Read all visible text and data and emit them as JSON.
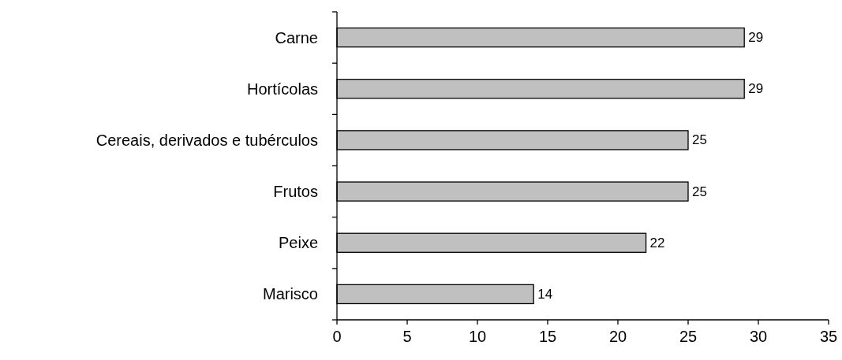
{
  "chart_data": {
    "type": "bar",
    "orientation": "horizontal",
    "categories": [
      "Carne",
      "Hortícolas",
      "Cereais, derivados e tubérculos",
      "Frutos",
      "Peixe",
      "Marisco"
    ],
    "values": [
      29,
      29,
      25,
      25,
      22,
      14
    ],
    "color": "#c0c0c0",
    "xlim": [
      0,
      35
    ],
    "xticks": [
      0,
      5,
      10,
      15,
      20,
      25,
      30,
      35
    ],
    "data_labels": true
  }
}
